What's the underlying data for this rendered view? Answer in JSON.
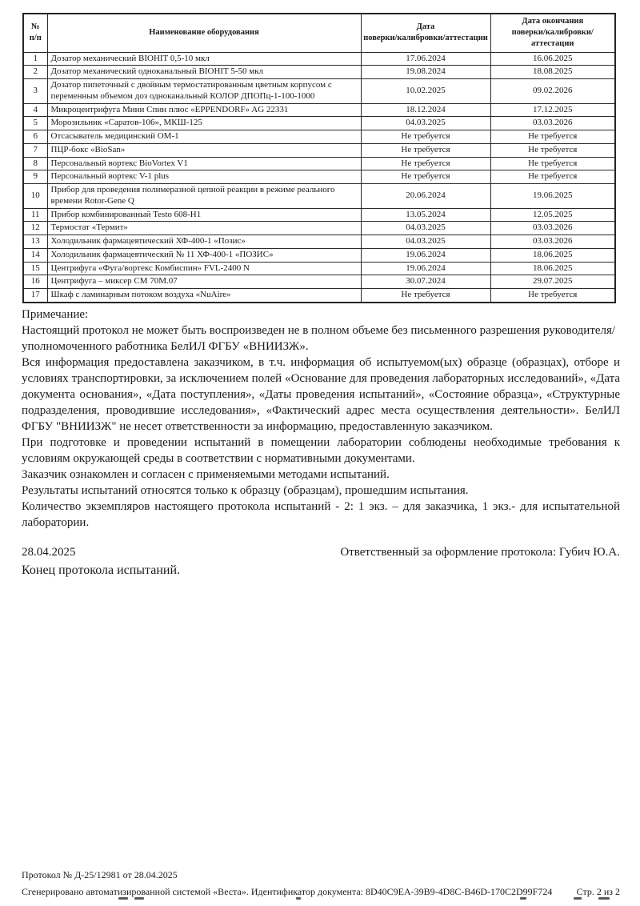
{
  "table": {
    "headers": [
      {
        "line1": "№",
        "line2": "п/п"
      },
      {
        "line1": "Наименование оборудования",
        "line2": ""
      },
      {
        "line1": "Дата",
        "line2": "поверки/калибровки/аттестации"
      },
      {
        "line1": "Дата окончания",
        "line2": "поверки/калибровки/аттестации"
      }
    ],
    "rows": [
      {
        "num": "1",
        "name": "Дозатор механический BIOHIT 0,5-10 мкл",
        "date": "17.06.2024",
        "date_end": "16.06.2025"
      },
      {
        "num": "2",
        "name": "Дозатор механический одноканальный BIOHIT 5-50 мкл",
        "date": "19.08.2024",
        "date_end": "18.08.2025"
      },
      {
        "num": "3",
        "name": "Дозатор пипеточный с двойным термостатированным цветным корпусом с переменным объемом доз одноканальный КОЛОР ДПОПц-1-100-1000",
        "date": "10.02.2025",
        "date_end": "09.02.2026"
      },
      {
        "num": "4",
        "name": "Микроцентрифуга Мини Спин плюс «EPPENDORF» AG 22331",
        "date": "18.12.2024",
        "date_end": "17.12.2025"
      },
      {
        "num": "5",
        "name": "Морозильник «Саратов-106», МКШ-125",
        "date": "04.03.2025",
        "date_end": "03.03.2026"
      },
      {
        "num": "6",
        "name": "Отсасыватель медицинский ОМ-1",
        "date": "Не требуется",
        "date_end": "Не требуется"
      },
      {
        "num": "7",
        "name": "ПЦР-бокс «BioSan»",
        "date": "Не требуется",
        "date_end": "Не требуется"
      },
      {
        "num": "8",
        "name": "Персональный вортекс BioVortex V1",
        "date": "Не требуется",
        "date_end": "Не требуется"
      },
      {
        "num": "9",
        "name": "Персональный вортекс V-1 plus",
        "date": "Не требуется",
        "date_end": "Не требуется"
      },
      {
        "num": "10",
        "name": "Прибор для проведения полимеразной цепной реакции в режиме реального времени Rotor-Gene Q",
        "date": "20.06.2024",
        "date_end": "19.06.2025"
      },
      {
        "num": "11",
        "name": "Прибор комбинированный Testo 608-H1",
        "date": "13.05.2024",
        "date_end": "12.05.2025"
      },
      {
        "num": "12",
        "name": "Термостат «Термит»",
        "date": "04.03.2025",
        "date_end": "03.03.2026"
      },
      {
        "num": "13",
        "name": "Холодильник фармацевтический ХФ-400-1 «Позис»",
        "date": "04.03.2025",
        "date_end": "03.03.2026"
      },
      {
        "num": "14",
        "name": "Холодильник фармацевтический № 11 ХФ-400-1 «ПОЗИС»",
        "date": "19.06.2024",
        "date_end": "18.06.2025"
      },
      {
        "num": "15",
        "name": "Центрифуга «Фуга/вортекс Комбиспин» FVL-2400 N",
        "date": "19.06.2024",
        "date_end": "18.06.2025"
      },
      {
        "num": "16",
        "name": "Центрифуга – миксер СМ 70М.07",
        "date": "30.07.2024",
        "date_end": "29.07.2025"
      },
      {
        "num": "17",
        "name": "Шкаф с ламинарным потоком воздуха «NuAire»",
        "date": "Не требуется",
        "date_end": "Не требуется"
      }
    ]
  },
  "notes": {
    "heading": "Примечание:",
    "paragraphs": [
      "Настоящий протокол не может быть воспроизведен не в полном объеме без письменного разрешения руководителя/уполномоченного работника БелИЛ ФГБУ «ВНИИЗЖ».",
      "Вся информация предоставлена заказчиком, в т.ч. информация об испытуемом(ых) образце (образцах), отборе и условиях транспортировки, за исключением полей «Основание для проведения лабораторных исследований», «Дата документа основания», «Дата поступления», «Даты проведения испытаний», «Состояние образца», «Структурные подразделения, проводившие исследования», «Фактический адрес места осуществления деятельности». БелИЛ ФГБУ \"ВНИИЗЖ\" не несет ответственности за информацию, предоставленную заказчиком.",
      "При подготовке и проведении испытаний в помещении лаборатории соблюдены необходимые требования к условиям окружающей среды в соответствии с нормативными документами.",
      "Заказчик ознакомлен и согласен с применяемыми методами испытаний.",
      "Результаты испытаний относятся только к образцу (образцам), прошедшим испытания.",
      "Количество экземпляров настоящего протокола испытаний - 2: 1 экз. – для заказчика, 1 экз.- для испытательной лаборатории."
    ]
  },
  "signature": {
    "date": "28.04.2025",
    "responsible": "Ответственный за оформление протокола: Губич Ю.А.",
    "end_line": "Конец протокола испытаний."
  },
  "footer": {
    "protocol_line": "Протокол № Д-25/12981 от 28.04.2025",
    "generated_line": "Сгенерировано автоматизированной системой «Веста». Идентификатор документа: 8D40C9EA-39B9-4D8C-B46D-170C2D99F724",
    "page_indicator": "Стр. 2 из 2"
  }
}
